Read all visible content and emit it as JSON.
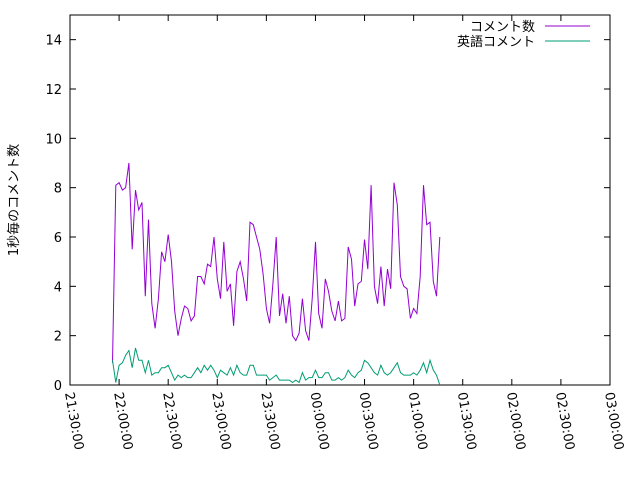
{
  "chart_data": {
    "type": "line",
    "title": "",
    "xlabel": "",
    "ylabel": "1秒毎のコメント数",
    "x_ticks": [
      "21:30:00",
      "22:00:00",
      "22:30:00",
      "23:00:00",
      "23:30:00",
      "00:00:00",
      "00:30:00",
      "01:00:00",
      "01:30:00",
      "02:00:00",
      "02:30:00",
      "03:00:00"
    ],
    "y_ticks": [
      "0",
      "2",
      "4",
      "6",
      "8",
      "10",
      "12",
      "14"
    ],
    "xlim_minutes": [
      0,
      330
    ],
    "ylim": [
      0,
      15
    ],
    "grid": false,
    "legend_position": "top-right",
    "sample_interval_minutes": 2,
    "x_start_minutes": 26,
    "series": [
      {
        "name": "コメント数",
        "color": "#9400d3",
        "values": [
          0.9,
          8.1,
          8.2,
          7.9,
          8.0,
          9.0,
          5.5,
          7.9,
          7.1,
          7.4,
          3.6,
          6.7,
          3.3,
          2.3,
          3.5,
          5.4,
          5.0,
          6.1,
          5.0,
          3.0,
          2.0,
          2.7,
          3.2,
          3.1,
          2.6,
          2.8,
          4.4,
          4.4,
          4.1,
          4.9,
          4.8,
          6.0,
          4.3,
          3.5,
          5.8,
          3.8,
          4.1,
          2.4,
          4.6,
          5.0,
          4.3,
          3.4,
          6.6,
          6.5,
          6.0,
          5.5,
          4.5,
          3.1,
          2.5,
          4.1,
          6.0,
          2.8,
          3.7,
          2.5,
          3.6,
          2.0,
          1.8,
          2.1,
          3.5,
          2.2,
          1.8,
          3.5,
          5.8,
          2.9,
          2.3,
          4.3,
          3.8,
          3.0,
          2.6,
          3.4,
          2.6,
          2.7,
          5.6,
          5.1,
          3.2,
          4.1,
          4.2,
          5.9,
          4.7,
          8.1,
          4.0,
          3.3,
          4.8,
          3.2,
          4.7,
          3.9,
          8.2,
          7.3,
          4.4,
          4.0,
          3.9,
          2.7,
          3.1,
          2.9,
          4.4,
          8.1,
          6.5,
          6.6,
          4.2,
          3.6,
          6.0
        ]
      },
      {
        "name": "英語コメント",
        "color": "#009e73",
        "values": [
          1.0,
          0.1,
          0.8,
          0.9,
          1.2,
          1.4,
          0.7,
          1.5,
          1.0,
          1.0,
          0.5,
          1.0,
          0.4,
          0.5,
          0.5,
          0.7,
          0.7,
          0.8,
          0.5,
          0.2,
          0.4,
          0.3,
          0.4,
          0.3,
          0.3,
          0.5,
          0.7,
          0.5,
          0.8,
          0.6,
          0.8,
          0.6,
          0.3,
          0.6,
          0.5,
          0.4,
          0.7,
          0.4,
          0.8,
          0.5,
          0.4,
          0.4,
          0.8,
          0.8,
          0.4,
          0.4,
          0.4,
          0.4,
          0.2,
          0.3,
          0.4,
          0.2,
          0.2,
          0.2,
          0.2,
          0.1,
          0.2,
          0.1,
          0.5,
          0.2,
          0.3,
          0.3,
          0.6,
          0.3,
          0.3,
          0.5,
          0.5,
          0.2,
          0.2,
          0.3,
          0.2,
          0.3,
          0.6,
          0.4,
          0.3,
          0.5,
          0.6,
          1.0,
          0.9,
          0.7,
          0.5,
          0.4,
          0.8,
          0.5,
          0.4,
          0.5,
          0.7,
          0.9,
          0.5,
          0.4,
          0.4,
          0.4,
          0.5,
          0.4,
          0.6,
          0.9,
          0.5,
          1.0,
          0.6,
          0.4,
          0.0
        ]
      }
    ]
  }
}
